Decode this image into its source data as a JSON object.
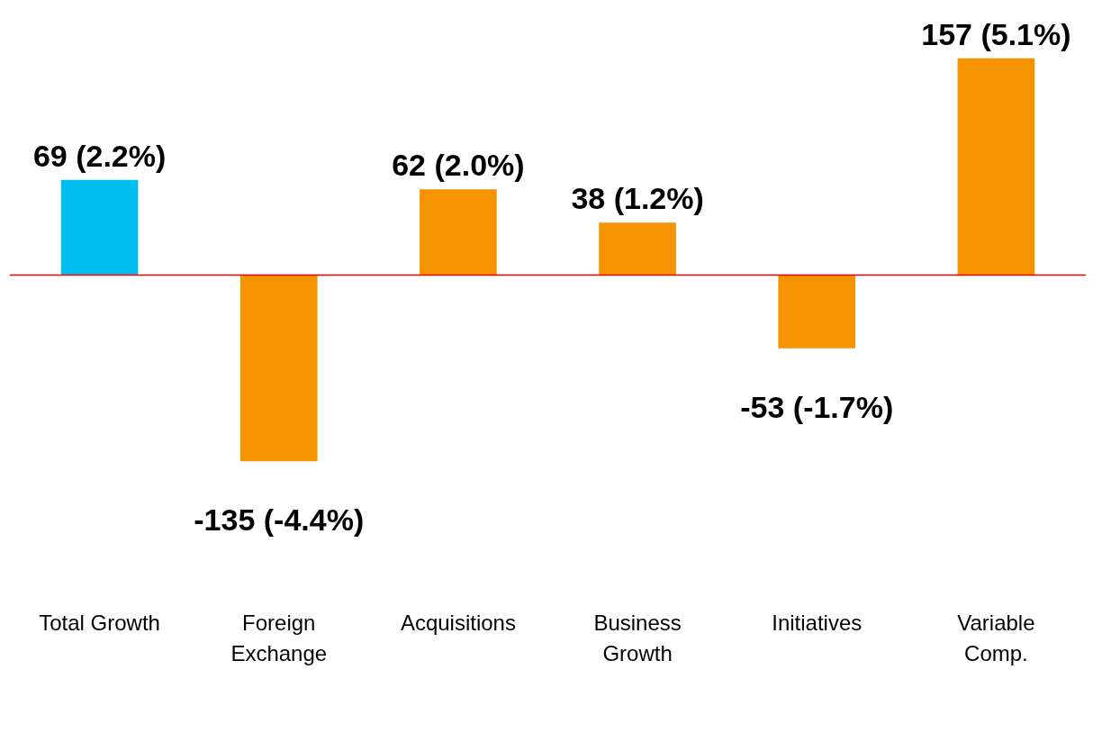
{
  "chart_data": {
    "type": "bar",
    "categories": [
      "Total Growth",
      "Foreign Exchange",
      "Acquisitions",
      "Business Growth",
      "Initiatives",
      "Variable Comp."
    ],
    "values": [
      69,
      -135,
      62,
      38,
      -53,
      157
    ],
    "colors": [
      "#00bfef",
      "#f59300",
      "#f59300",
      "#f59300",
      "#f59300",
      "#f59300"
    ],
    "value_labels": [
      "69 (2.2%)",
      "-135 (-4.4%)",
      "62 (2.0%)",
      "38 (1.2%)",
      "-53 (-1.7%)",
      "157 (5.1%)"
    ],
    "ref_lines": [
      {
        "axis": "y",
        "value": 0,
        "color": "#ff0000"
      }
    ],
    "grid": false,
    "legend": false
  }
}
